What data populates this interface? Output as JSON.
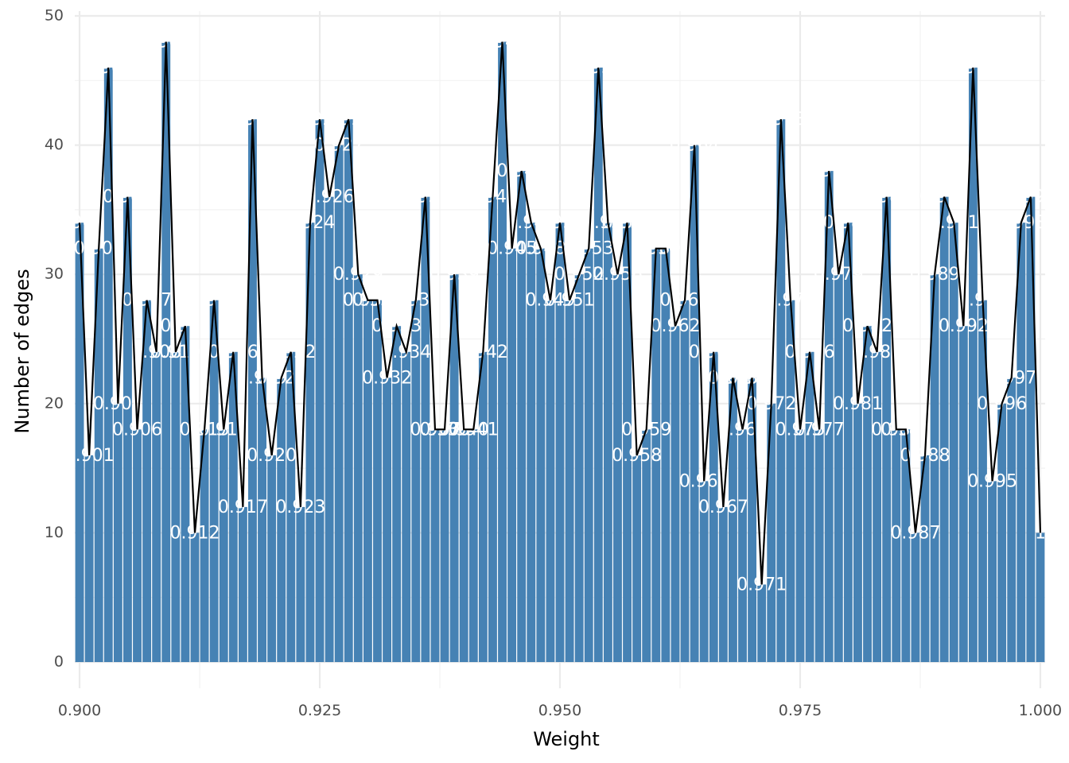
{
  "chart_data": {
    "type": "bar",
    "title": "",
    "xlabel": "Weight",
    "ylabel": "Number of edges",
    "xlim": [
      0.8995,
      1.0005
    ],
    "ylim": [
      0,
      50
    ],
    "grid": true,
    "x_ticks": [
      "0.900",
      "0.925",
      "0.950",
      "0.975",
      "1.000"
    ],
    "y_ticks": [
      "0",
      "10",
      "20",
      "30",
      "40",
      "50"
    ],
    "x_tick_values": [
      0.9,
      0.925,
      0.95,
      0.975,
      1.0
    ],
    "y_tick_values": [
      0,
      10,
      20,
      30,
      40,
      50
    ],
    "colors": {
      "bar": "#4682b4",
      "line": "#000000",
      "label": "#ffffff",
      "grid": "#ebebeb"
    },
    "series": [
      {
        "name": "",
        "type": "bar+line",
        "x": [
          0.9,
          0.901,
          0.902,
          0.903,
          0.904,
          0.905,
          0.906,
          0.907,
          0.908,
          0.909,
          0.91,
          0.911,
          0.912,
          0.913,
          0.914,
          0.915,
          0.916,
          0.917,
          0.918,
          0.919,
          0.92,
          0.921,
          0.922,
          0.923,
          0.924,
          0.925,
          0.926,
          0.927,
          0.928,
          0.929,
          0.93,
          0.931,
          0.932,
          0.933,
          0.934,
          0.935,
          0.936,
          0.937,
          0.938,
          0.939,
          0.94,
          0.941,
          0.942,
          0.943,
          0.944,
          0.945,
          0.946,
          0.947,
          0.948,
          0.949,
          0.95,
          0.951,
          0.952,
          0.953,
          0.954,
          0.955,
          0.956,
          0.957,
          0.958,
          0.959,
          0.96,
          0.961,
          0.962,
          0.963,
          0.964,
          0.965,
          0.966,
          0.967,
          0.968,
          0.969,
          0.97,
          0.971,
          0.972,
          0.973,
          0.974,
          0.975,
          0.976,
          0.977,
          0.978,
          0.979,
          0.98,
          0.981,
          0.982,
          0.983,
          0.984,
          0.985,
          0.986,
          0.987,
          0.988,
          0.989,
          0.99,
          0.991,
          0.992,
          0.993,
          0.994,
          0.995,
          0.996,
          0.997,
          0.998,
          0.999,
          1.0
        ],
        "values": [
          34,
          16,
          32,
          46,
          20,
          36,
          18,
          28,
          24,
          48,
          24,
          26,
          10,
          18,
          28,
          18,
          24,
          12,
          42,
          22,
          16,
          22,
          24,
          12,
          34,
          42,
          36,
          40,
          42,
          30,
          28,
          28,
          22,
          26,
          24,
          28,
          36,
          18,
          18,
          30,
          18,
          18,
          24,
          36,
          48,
          32,
          38,
          34,
          32,
          28,
          34,
          28,
          30,
          32,
          46,
          34,
          30,
          34,
          16,
          18,
          32,
          32,
          26,
          28,
          40,
          14,
          24,
          12,
          22,
          18,
          22,
          6,
          20,
          42,
          28,
          18,
          24,
          18,
          38,
          30,
          34,
          20,
          26,
          24,
          36,
          18,
          18,
          10,
          16,
          30,
          36,
          34,
          26,
          46,
          28,
          14,
          20,
          22,
          34,
          36,
          10
        ],
        "labels": [
          "0.900",
          "0.901",
          "0.902",
          "0.903",
          "0.904",
          "0.905",
          "0.906",
          "0.907",
          "0.908",
          "0.909",
          "0.910",
          "0.911",
          "0.912",
          "0.913",
          "0.914",
          "0.915",
          "0.916",
          "0.917",
          "0.918",
          "0.919",
          "0.920",
          "0.921",
          "0.922",
          "0.923",
          "0.924",
          "0.925",
          "0.926",
          "0.927",
          "0.928",
          "0.929",
          "0.930",
          "0.931",
          "0.932",
          "0.933",
          "0.934",
          "0.935",
          "0.936",
          "0.937",
          "0.938",
          "0.939",
          "0.940",
          "0.941",
          "0.942",
          "0.943",
          "0.944",
          "0.945",
          "0.946",
          "0.947",
          "0.948",
          "0.949",
          "0.950",
          "0.951",
          "0.952",
          "0.953",
          "0.954",
          "0.955",
          "0.956",
          "0.957",
          "0.958",
          "0.959",
          "0.960",
          "0.961",
          "0.962",
          "0.963",
          "0.964",
          "0.965",
          "0.966",
          "0.967",
          "0.968",
          "0.969",
          "0.970",
          "0.971",
          "0.972",
          "0.973",
          "0.974",
          "0.975",
          "0.976",
          "0.977",
          "0.978",
          "0.979",
          "0.980",
          "0.981",
          "0.982",
          "0.983",
          "0.984",
          "0.985",
          "0.986",
          "0.987",
          "0.988",
          "0.989",
          "0.990",
          "0.991",
          "0.992",
          "0.993",
          "0.994",
          "0.995",
          "0.996",
          "0.997",
          "0.998",
          "0.999",
          "1"
        ]
      }
    ]
  }
}
